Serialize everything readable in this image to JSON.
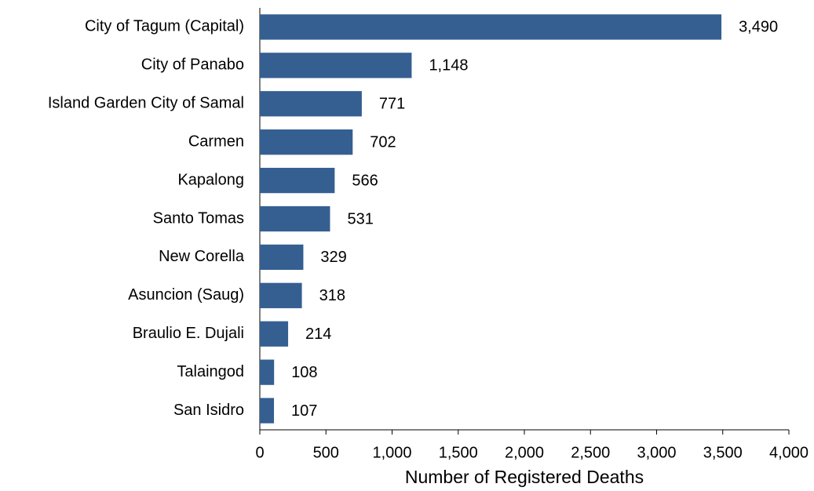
{
  "chart_data": {
    "type": "bar",
    "orientation": "horizontal",
    "xlabel": "Number of Registered Deaths",
    "categories": [
      "City of Tagum (Capital)",
      "City of Panabo",
      "Island Garden City of Samal",
      "Carmen",
      "Kapalong",
      "Santo Tomas",
      "New Corella",
      "Asuncion (Saug)",
      "Braulio E. Dujali",
      "Talaingod",
      "San Isidro"
    ],
    "values": [
      3490,
      1148,
      771,
      702,
      566,
      531,
      329,
      318,
      214,
      108,
      107
    ],
    "value_labels": [
      "3,490",
      "1,148",
      "771",
      "702",
      "566",
      "531",
      "329",
      "318",
      "214",
      "108",
      "107"
    ],
    "color": "#355f91",
    "xlim": [
      0,
      4000
    ],
    "xticks": [
      0,
      500,
      {
        "value": 1000,
        "label": "1,000"
      },
      {
        "value": 1500,
        "label": "1,500"
      },
      {
        "value": 2000,
        "label": "2,000"
      },
      {
        "value": 2500,
        "label": "2,500"
      },
      {
        "value": 3000,
        "label": "3,000"
      },
      {
        "value": 3500,
        "label": "3,500"
      },
      {
        "value": 4000,
        "label": "4,000"
      }
    ],
    "grid": false
  }
}
